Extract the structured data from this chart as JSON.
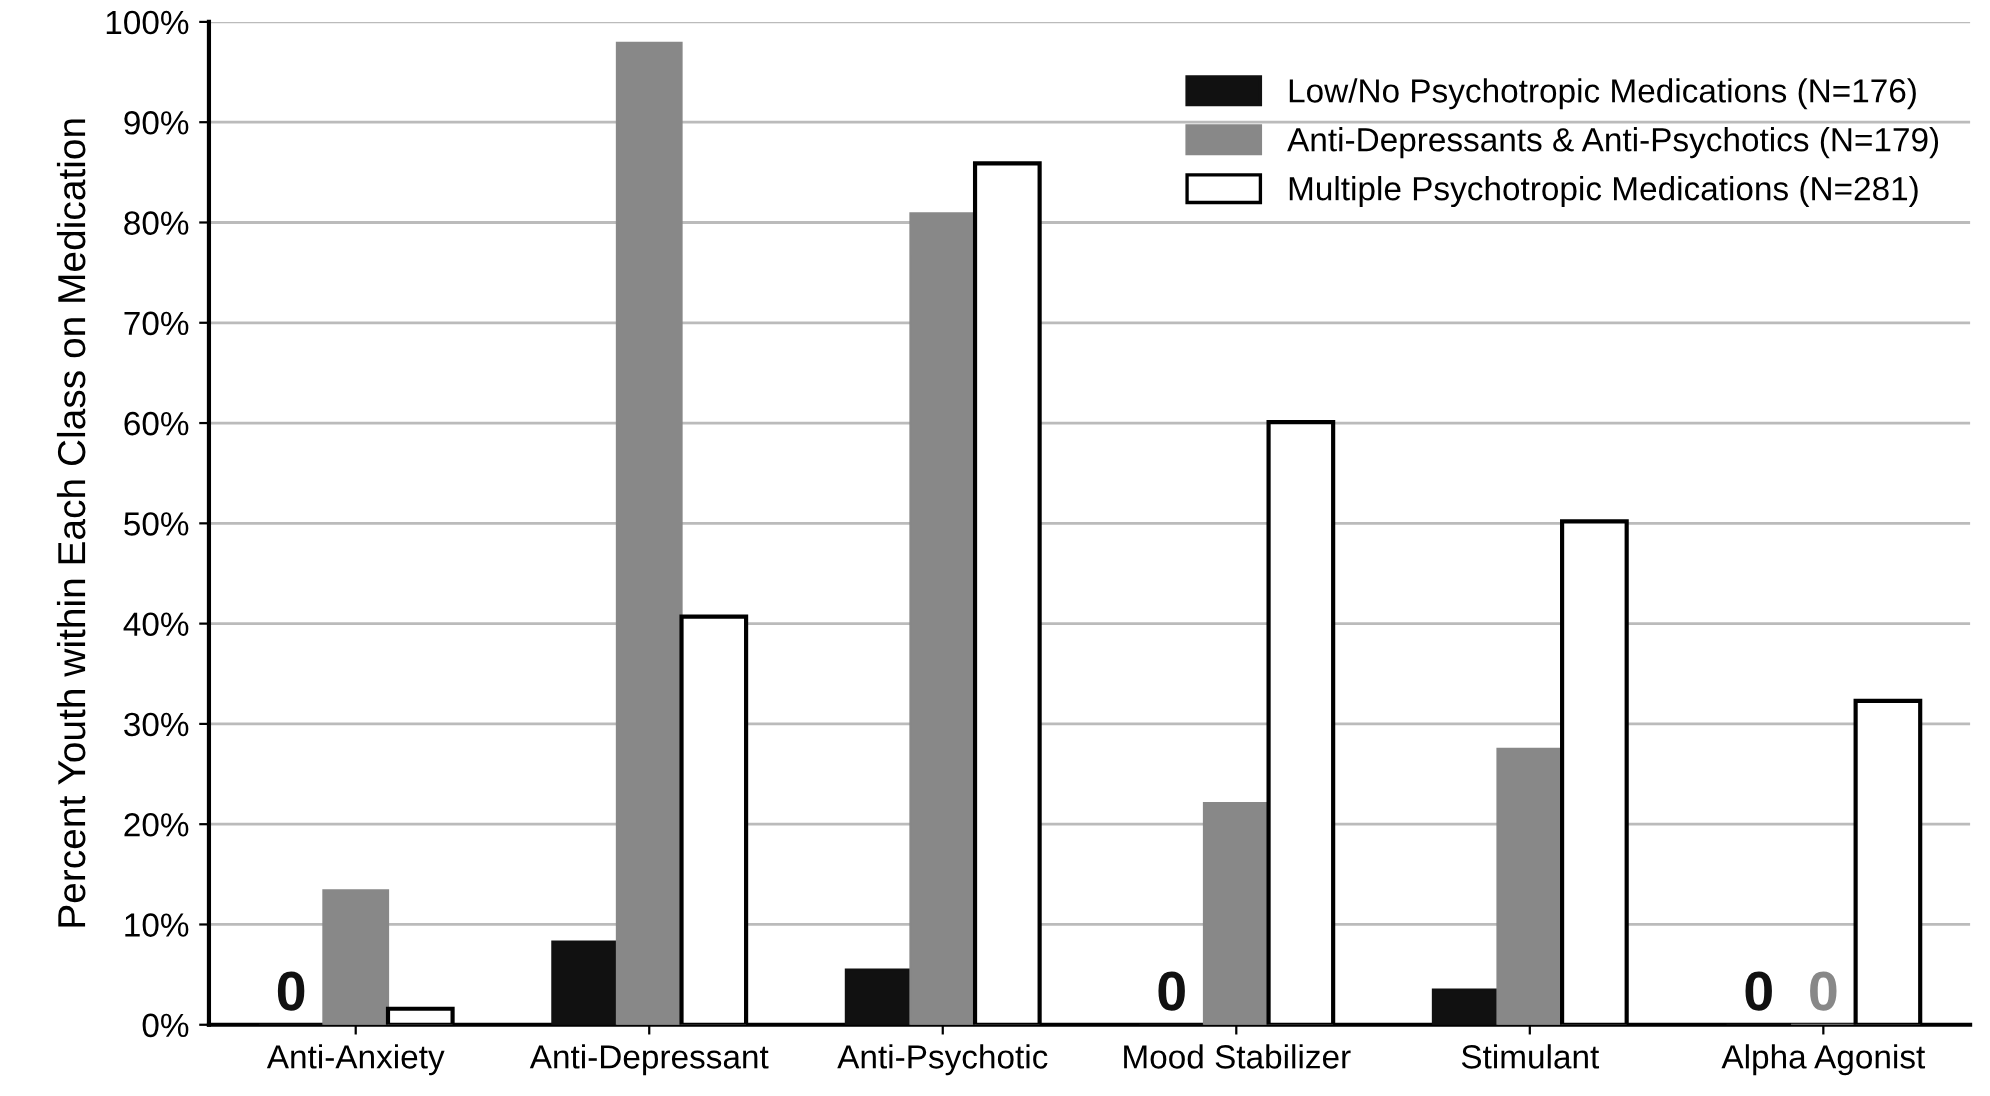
{
  "chart_data": {
    "type": "bar",
    "ylabel": "Percent Youth within Each Class on Medication",
    "categories": [
      "Anti-Anxiety",
      "Anti-Depressant",
      "Anti-Psychotic",
      "Mood Stabilizer",
      "Stimulant",
      "Alpha Agonist"
    ],
    "series": [
      {
        "name": "Low/No Psychotropic Medications (N=176)",
        "color": "#111111",
        "values": [
          0,
          8.3,
          5.5,
          0,
          3.5,
          0
        ],
        "value_labels": [
          "0",
          null,
          null,
          "0",
          null,
          "0"
        ]
      },
      {
        "name": "Anti-Depressants & Anti-Psychotics (N=179)",
        "color": "#888888",
        "values": [
          13.4,
          97.9,
          80.9,
          22.1,
          27.5,
          0
        ],
        "value_labels": [
          null,
          null,
          null,
          null,
          null,
          "0"
        ]
      },
      {
        "name": "Multiple Psychotropic Medications (N=281)",
        "color": "#ffffff",
        "values": [
          1.6,
          40.7,
          85.9,
          60.1,
          50.2,
          32.3
        ]
      }
    ],
    "ylim": [
      0,
      100
    ],
    "yticks": [
      {
        "value": 0,
        "label": "0%"
      },
      {
        "value": 10,
        "label": "10%"
      },
      {
        "value": 20,
        "label": "20%"
      },
      {
        "value": 30,
        "label": "30%"
      },
      {
        "value": 40,
        "label": "40%"
      },
      {
        "value": 50,
        "label": "50%"
      },
      {
        "value": 60,
        "label": "60%"
      },
      {
        "value": 70,
        "label": "70%"
      },
      {
        "value": 80,
        "label": "80%"
      },
      {
        "value": 90,
        "label": "90%"
      },
      {
        "value": 100,
        "label": "100%"
      }
    ],
    "grid": "y",
    "legend": "top right"
  }
}
